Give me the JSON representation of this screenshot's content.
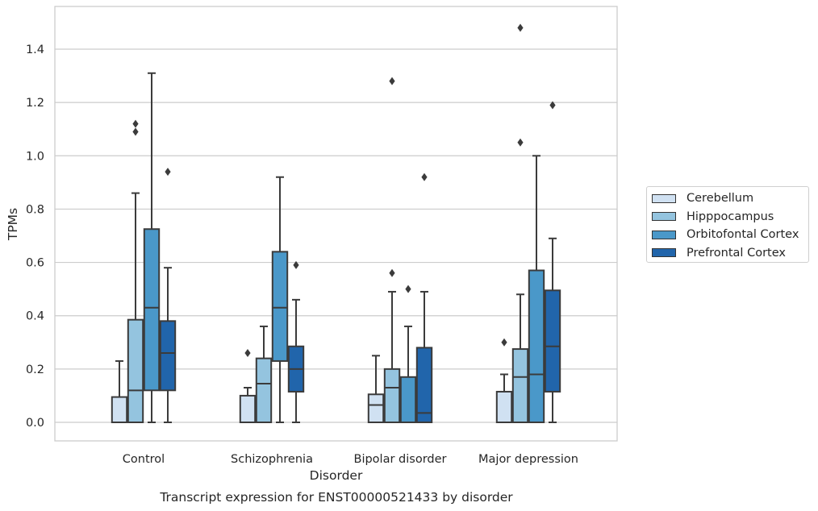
{
  "chart_data": {
    "type": "boxplot",
    "title": "Transcript expression for ENST00000521433 by disorder",
    "xlabel": "Disorder",
    "ylabel": "TPMs",
    "ylim": [
      -0.07,
      1.56
    ],
    "yticks": [
      "0.0",
      "0.2",
      "0.4",
      "0.6",
      "0.8",
      "1.0",
      "1.2",
      "1.4"
    ],
    "grid": "horizontal",
    "legend_position": "right",
    "categories": [
      "Control",
      "Schizophrenia",
      "Bipolar disorder",
      "Major depression"
    ],
    "series": [
      {
        "name": "Cerebellum",
        "color": "#d0e1f2",
        "boxes": [
          {
            "whislo": 0.0,
            "q1": 0.0,
            "med": 0.0,
            "q3": 0.095,
            "whishi": 0.23,
            "fliers": []
          },
          {
            "whislo": 0.0,
            "q1": 0.0,
            "med": 0.0,
            "q3": 0.1,
            "whishi": 0.13,
            "fliers": [
              0.26
            ]
          },
          {
            "whislo": 0.0,
            "q1": 0.0,
            "med": 0.065,
            "q3": 0.105,
            "whishi": 0.25,
            "fliers": []
          },
          {
            "whislo": 0.0,
            "q1": 0.0,
            "med": 0.0,
            "q3": 0.115,
            "whishi": 0.18,
            "fliers": [
              0.3
            ]
          }
        ]
      },
      {
        "name": "Hipppocampus",
        "color": "#94c4df",
        "boxes": [
          {
            "whislo": 0.0,
            "q1": 0.0,
            "med": 0.12,
            "q3": 0.385,
            "whishi": 0.86,
            "fliers": [
              1.09,
              1.12
            ]
          },
          {
            "whislo": 0.0,
            "q1": 0.0,
            "med": 0.145,
            "q3": 0.24,
            "whishi": 0.36,
            "fliers": []
          },
          {
            "whislo": 0.0,
            "q1": 0.0,
            "med": 0.13,
            "q3": 0.2,
            "whishi": 0.49,
            "fliers": [
              0.56,
              1.28
            ]
          },
          {
            "whislo": 0.0,
            "q1": 0.0,
            "med": 0.17,
            "q3": 0.275,
            "whishi": 0.48,
            "fliers": [
              1.05,
              1.48
            ]
          }
        ]
      },
      {
        "name": "Orbitofontal Cortex",
        "color": "#4a98c9",
        "boxes": [
          {
            "whislo": 0.0,
            "q1": 0.12,
            "med": 0.43,
            "q3": 0.725,
            "whishi": 1.31,
            "fliers": []
          },
          {
            "whislo": 0.0,
            "q1": 0.23,
            "med": 0.43,
            "q3": 0.64,
            "whishi": 0.92,
            "fliers": []
          },
          {
            "whislo": 0.0,
            "q1": 0.0,
            "med": 0.0,
            "q3": 0.17,
            "whishi": 0.36,
            "fliers": [
              0.5
            ]
          },
          {
            "whislo": 0.0,
            "q1": 0.0,
            "med": 0.18,
            "q3": 0.57,
            "whishi": 1.0,
            "fliers": []
          }
        ]
      },
      {
        "name": "Prefrontal Cortex",
        "color": "#2165ab",
        "boxes": [
          {
            "whislo": 0.0,
            "q1": 0.12,
            "med": 0.26,
            "q3": 0.38,
            "whishi": 0.58,
            "fliers": [
              0.94
            ]
          },
          {
            "whislo": 0.0,
            "q1": 0.115,
            "med": 0.2,
            "q3": 0.285,
            "whishi": 0.46,
            "fliers": [
              0.59
            ]
          },
          {
            "whislo": 0.0,
            "q1": 0.0,
            "med": 0.035,
            "q3": 0.28,
            "whishi": 0.49,
            "fliers": [
              0.92
            ]
          },
          {
            "whislo": 0.0,
            "q1": 0.115,
            "med": 0.285,
            "q3": 0.495,
            "whishi": 0.69,
            "fliers": [
              1.19
            ]
          }
        ]
      }
    ]
  }
}
